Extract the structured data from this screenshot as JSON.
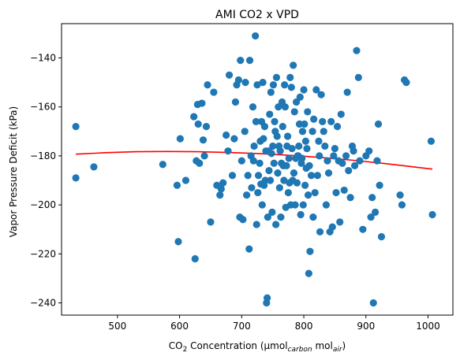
{
  "chart_data": {
    "type": "scatter",
    "title": "AMI CO2 x VPD",
    "xlabel": {
      "pre": "CO",
      "sub1": "2",
      "mid": " Concentration (µmol",
      "sub2": "carbon",
      "mid2": " mol",
      "sub3": "air",
      "post": ")"
    },
    "ylabel": "Vapor Pressure Deficit (kPa)",
    "xlim": [
      410,
      1040
    ],
    "ylim": [
      -245,
      -126
    ],
    "xticks": [
      500,
      600,
      700,
      800,
      900,
      1000
    ],
    "yticks": [
      -140,
      -160,
      -180,
      -200,
      -220,
      -240
    ],
    "xtick_labels": [
      "500",
      "600",
      "700",
      "800",
      "900",
      "1000"
    ],
    "ytick_labels": [
      "−140",
      "−160",
      "−180",
      "−200",
      "−220",
      "−240"
    ],
    "grid": false,
    "colors": {
      "points": "#1f77b4",
      "fit": "#ff0000"
    },
    "series": [
      {
        "kind": "points",
        "x": [
          433,
          433,
          462,
          573,
          596,
          598,
          601,
          610,
          623,
          625,
          627,
          629,
          630,
          632,
          636,
          638,
          640,
          643,
          645,
          650,
          655,
          660,
          665,
          667,
          670,
          675,
          678,
          680,
          685,
          688,
          690,
          692,
          695,
          697,
          698,
          700,
          702,
          705,
          706,
          708,
          710,
          712,
          713,
          715,
          716,
          718,
          719,
          720,
          722,
          723,
          724,
          725,
          726,
          727,
          729,
          730,
          731,
          732,
          733,
          734,
          735,
          736,
          737,
          738,
          739,
          740,
          741,
          742,
          743,
          744,
          745,
          746,
          747,
          748,
          749,
          750,
          751,
          752,
          753,
          754,
          755,
          756,
          757,
          758,
          759,
          760,
          761,
          762,
          763,
          764,
          765,
          766,
          767,
          768,
          769,
          770,
          771,
          772,
          773,
          774,
          775,
          776,
          777,
          778,
          779,
          780,
          781,
          782,
          783,
          784,
          785,
          786,
          787,
          788,
          789,
          790,
          791,
          792,
          793,
          794,
          795,
          796,
          797,
          798,
          799,
          800,
          801,
          802,
          803,
          804,
          805,
          806,
          807,
          808,
          809,
          810,
          812,
          814,
          815,
          816,
          818,
          820,
          822,
          824,
          825,
          826,
          828,
          830,
          832,
          834,
          836,
          838,
          840,
          842,
          844,
          846,
          848,
          850,
          852,
          854,
          856,
          858,
          860,
          862,
          865,
          868,
          870,
          872,
          875,
          878,
          880,
          882,
          885,
          888,
          890,
          895,
          900,
          905,
          908,
          910,
          912,
          915,
          918,
          920,
          922,
          925,
          955,
          958,
          962,
          965,
          1005,
          1007
        ],
        "y": [
          -168,
          -189,
          -184.5,
          -183.5,
          -192,
          -215,
          -173,
          -190,
          -164,
          -222,
          -182,
          -159,
          -167,
          -183,
          -158.5,
          -173.5,
          -180,
          -168,
          -151,
          -207,
          -154,
          -192,
          -196,
          -193.5,
          -191,
          -171.5,
          -178,
          -147,
          -188,
          -173,
          -158,
          -151,
          -149,
          -205,
          -141,
          -182,
          -206,
          -170,
          -150,
          -196,
          -188,
          -218,
          -141,
          -180,
          -193,
          -160,
          -182,
          -176,
          -131,
          -166,
          -208,
          -151,
          -195,
          -188,
          -183,
          -174,
          -191.5,
          -166,
          -200,
          -150,
          -173,
          -192,
          -168,
          -190,
          -178,
          -240,
          -238,
          -205,
          -178,
          -186,
          -163,
          -190,
          -154,
          -179,
          -203,
          -176,
          -151,
          -183,
          -166,
          -170,
          -208,
          -148,
          -172,
          -187,
          -160,
          -176,
          -193,
          -178,
          -205,
          -183,
          -158,
          -168,
          -184,
          -190,
          -151,
          -160,
          -201,
          -184,
          -176,
          -172,
          -195,
          -181,
          -191,
          -148,
          -200,
          -152,
          -177,
          -190,
          -143,
          -187,
          -162,
          -200,
          -181,
          -158,
          -191,
          -180,
          -180,
          -176,
          -167,
          -156,
          -204,
          -183,
          -181,
          -170,
          -200,
          -153,
          -167,
          -192,
          -174,
          -185,
          -177,
          -162,
          -196,
          -228,
          -184,
          -219,
          -188,
          -170,
          -205,
          -165,
          -195,
          -153,
          -188,
          -174,
          -180,
          -211,
          -155,
          -166,
          -170,
          -176,
          -200,
          -182,
          -187,
          -211,
          -166,
          -209,
          -180,
          -177,
          -195,
          -168,
          -182,
          -207,
          -163,
          -183,
          -194,
          -180,
          -154,
          -186,
          -197,
          -176,
          -178,
          -184,
          -137,
          -148,
          -182,
          -210,
          -180,
          -178,
          -205,
          -197,
          -240,
          -203,
          -182,
          -167,
          -192,
          -213,
          -196,
          -200,
          -149,
          -150,
          -174,
          -204
        ]
      },
      {
        "kind": "fit",
        "x": [
          433,
          480,
          530,
          580,
          630,
          680,
          730,
          780,
          830,
          880,
          930,
          980,
          1007
        ],
        "y": [
          -179.3,
          -178.7,
          -178.3,
          -178.2,
          -178.3,
          -178.6,
          -179.1,
          -179.8,
          -180.7,
          -181.8,
          -183.1,
          -184.6,
          -185.4
        ]
      }
    ]
  }
}
